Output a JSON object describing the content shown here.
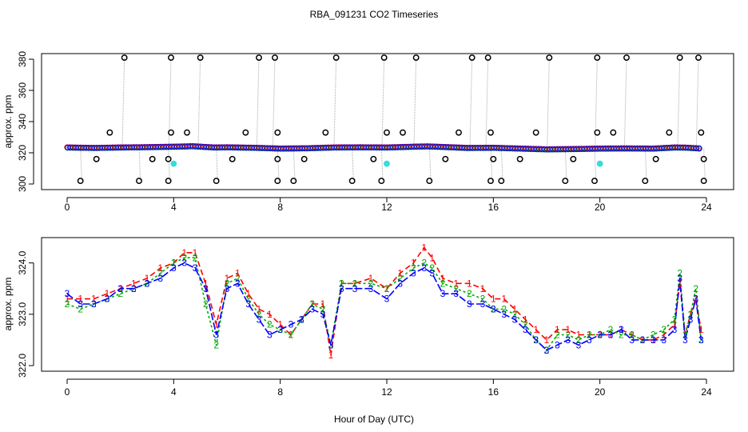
{
  "title": "RBA_091231  CO2 Timeseries",
  "xlabel": "Hour of Day (UTC)",
  "colors": {
    "series1": "#ff0000",
    "series2": "#00aa00",
    "series3": "#0000ff",
    "flagged": "#000000",
    "cyan": "#33dddd",
    "gray": "#aaaaaa"
  },
  "chart_data": [
    {
      "type": "scatter",
      "panel": "top",
      "ylabel": "approx. ppm",
      "xlim": [
        0,
        24
      ],
      "ylim": [
        300,
        380
      ],
      "xticks": [
        0,
        4,
        8,
        12,
        16,
        20,
        24
      ],
      "yticks": [
        300,
        320,
        340,
        360,
        380
      ],
      "baseline": {
        "x": [
          0,
          1,
          2,
          3,
          4,
          4.7,
          5.5,
          6,
          7,
          8,
          9,
          10,
          11,
          12,
          13,
          13.5,
          14,
          15,
          16,
          17,
          18,
          19,
          20,
          21,
          22,
          22.8,
          23.2,
          23.8
        ],
        "y": [
          323.5,
          323.2,
          323.5,
          323.7,
          324.0,
          324.3,
          323.5,
          323.6,
          323.3,
          322.8,
          323.0,
          323.5,
          323.6,
          323.5,
          324.0,
          324.2,
          323.9,
          323.2,
          323.3,
          322.8,
          322.3,
          322.5,
          322.8,
          322.9,
          322.8,
          323.5,
          323.4,
          322.8
        ]
      },
      "outliers_high": [
        2.15,
        3.9,
        5.0,
        7.2,
        7.8,
        10.1,
        11.9,
        13.1,
        15.2,
        15.8,
        18.1,
        19.9,
        21.0,
        23.0,
        23.7
      ],
      "outliers_low": [
        0.5,
        2.7,
        3.8,
        5.6,
        7.9,
        8.5,
        10.7,
        11.8,
        13.6,
        15.9,
        16.3,
        18.7,
        19.8,
        21.7,
        23.9
      ],
      "outliers_mid": [
        [
          1.6,
          333
        ],
        [
          3.9,
          333
        ],
        [
          4.5,
          333
        ],
        [
          6.7,
          333
        ],
        [
          7.9,
          333
        ],
        [
          9.7,
          333
        ],
        [
          12.0,
          333
        ],
        [
          12.6,
          333
        ],
        [
          14.7,
          333
        ],
        [
          15.9,
          333
        ],
        [
          17.6,
          333
        ],
        [
          19.9,
          333
        ],
        [
          20.5,
          333
        ],
        [
          22.6,
          333
        ],
        [
          23.8,
          333
        ],
        [
          1.1,
          316
        ],
        [
          3.2,
          316
        ],
        [
          3.8,
          316
        ],
        [
          6.2,
          316
        ],
        [
          7.9,
          316
        ],
        [
          8.9,
          316
        ],
        [
          11.5,
          316
        ],
        [
          14.2,
          316
        ],
        [
          16.0,
          316
        ],
        [
          17.0,
          316
        ],
        [
          19.0,
          316
        ],
        [
          22.1,
          316
        ],
        [
          23.9,
          316
        ]
      ],
      "cyan_points": [
        [
          4.0,
          313
        ],
        [
          12.0,
          313
        ],
        [
          20.0,
          313
        ]
      ]
    },
    {
      "type": "line",
      "panel": "bottom",
      "ylabel": "approx. ppm",
      "xlim": [
        0,
        24
      ],
      "ylim": [
        322.0,
        324.4
      ],
      "xticks": [
        0,
        4,
        8,
        12,
        16,
        20,
        24
      ],
      "yticks": [
        322.0,
        323.0,
        324.0
      ],
      "series": [
        {
          "name": "1",
          "marker": "1",
          "x": [
            0,
            0.5,
            1,
            1.5,
            2,
            2.5,
            3,
            3.5,
            4,
            4.4,
            4.8,
            5.2,
            5.6,
            6.0,
            6.4,
            6.8,
            7.2,
            7.6,
            8.0,
            8.4,
            8.8,
            9.2,
            9.6,
            9.9,
            10.3,
            10.8,
            11.4,
            12.0,
            12.5,
            13.0,
            13.4,
            13.7,
            14.1,
            14.6,
            15.1,
            15.6,
            16.0,
            16.4,
            16.8,
            17.2,
            17.6,
            18.0,
            18.4,
            18.8,
            19.2,
            19.6,
            20.0,
            20.4,
            20.8,
            21.2,
            21.6,
            22.0,
            22.4,
            22.8,
            23.0,
            23.2,
            23.4,
            23.6,
            23.8
          ],
          "y": [
            323.3,
            323.3,
            323.3,
            323.4,
            323.5,
            323.6,
            323.7,
            323.9,
            324.0,
            324.2,
            324.2,
            323.6,
            322.8,
            323.7,
            323.8,
            323.4,
            323.1,
            323.0,
            322.8,
            322.6,
            322.9,
            323.2,
            323.2,
            322.2,
            323.6,
            323.6,
            323.7,
            323.5,
            323.8,
            324.0,
            324.3,
            324.1,
            323.7,
            323.6,
            323.6,
            323.5,
            323.3,
            323.3,
            323.1,
            322.9,
            322.7,
            322.5,
            322.7,
            322.7,
            322.6,
            322.6,
            322.6,
            322.6,
            322.7,
            322.6,
            322.5,
            322.5,
            322.6,
            322.8,
            323.6,
            322.6,
            323.0,
            323.3,
            322.7
          ]
        },
        {
          "name": "2",
          "marker": "2",
          "x": [
            0,
            0.5,
            1,
            1.5,
            2,
            2.5,
            3,
            3.5,
            4,
            4.4,
            4.8,
            5.2,
            5.6,
            6.0,
            6.4,
            6.8,
            7.2,
            7.6,
            8.0,
            8.4,
            8.8,
            9.2,
            9.6,
            9.9,
            10.3,
            10.8,
            11.4,
            12.0,
            12.5,
            13.0,
            13.4,
            13.7,
            14.1,
            14.6,
            15.1,
            15.6,
            16.0,
            16.4,
            16.8,
            17.2,
            17.6,
            18.0,
            18.4,
            18.8,
            19.2,
            19.6,
            20.0,
            20.4,
            20.8,
            21.2,
            21.6,
            22.0,
            22.4,
            22.8,
            23.0,
            23.2,
            23.4,
            23.6,
            23.8
          ],
          "y": [
            323.2,
            323.1,
            323.2,
            323.3,
            323.4,
            323.5,
            323.6,
            323.8,
            324.0,
            324.1,
            324.1,
            323.2,
            322.4,
            323.6,
            323.7,
            323.3,
            323.0,
            322.8,
            322.7,
            322.6,
            322.9,
            323.2,
            323.1,
            322.4,
            323.6,
            323.6,
            323.6,
            323.5,
            323.7,
            323.9,
            324.0,
            323.9,
            323.6,
            323.5,
            323.4,
            323.3,
            323.1,
            323.1,
            323.0,
            322.8,
            322.5,
            322.3,
            322.6,
            322.6,
            322.5,
            322.6,
            322.6,
            322.7,
            322.6,
            322.6,
            322.5,
            322.6,
            322.7,
            322.9,
            323.8,
            322.6,
            323.0,
            323.5,
            322.5
          ]
        },
        {
          "name": "3",
          "marker": "3",
          "x": [
            0,
            0.5,
            1,
            1.5,
            2,
            2.5,
            3,
            3.5,
            4,
            4.4,
            4.8,
            5.2,
            5.6,
            6.0,
            6.4,
            6.8,
            7.2,
            7.6,
            8.0,
            8.4,
            8.8,
            9.2,
            9.6,
            9.9,
            10.3,
            10.8,
            11.4,
            12.0,
            12.5,
            13.0,
            13.4,
            13.7,
            14.1,
            14.6,
            15.1,
            15.6,
            16.0,
            16.4,
            16.8,
            17.2,
            17.6,
            18.0,
            18.4,
            18.8,
            19.2,
            19.6,
            20.0,
            20.4,
            20.8,
            21.2,
            21.6,
            22.0,
            22.4,
            22.8,
            23.0,
            23.2,
            23.4,
            23.6,
            23.8
          ],
          "y": [
            323.4,
            323.2,
            323.2,
            323.3,
            323.5,
            323.5,
            323.6,
            323.7,
            323.9,
            324.0,
            323.9,
            323.5,
            322.6,
            323.5,
            323.6,
            323.2,
            322.9,
            322.6,
            322.7,
            322.8,
            322.9,
            323.1,
            323.0,
            322.4,
            323.5,
            323.5,
            323.5,
            323.3,
            323.6,
            323.8,
            323.9,
            323.8,
            323.4,
            323.4,
            323.2,
            323.2,
            323.1,
            323.0,
            322.9,
            322.7,
            322.5,
            322.3,
            322.4,
            322.5,
            322.4,
            322.5,
            322.6,
            322.6,
            322.7,
            322.5,
            322.5,
            322.5,
            322.5,
            322.7,
            323.7,
            322.5,
            322.9,
            323.3,
            322.5
          ]
        }
      ]
    }
  ]
}
